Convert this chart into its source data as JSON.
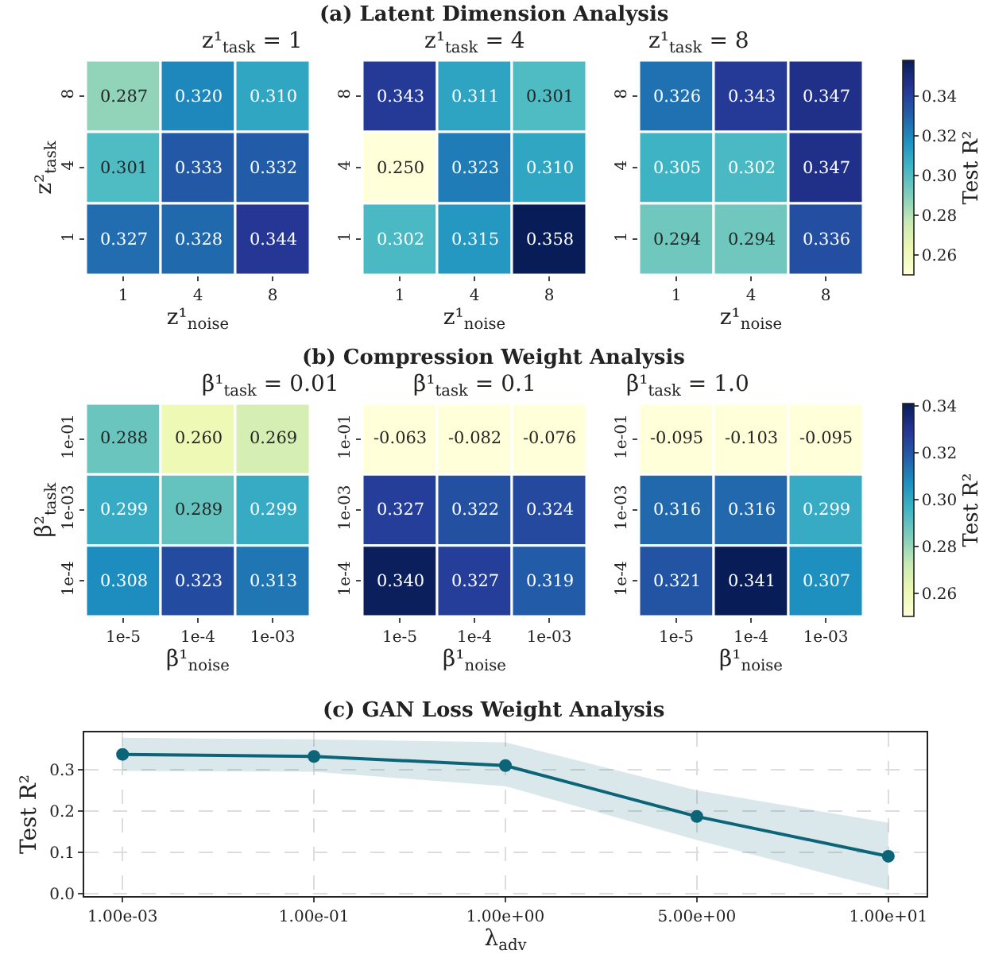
{
  "chart_data": [
    {
      "type": "heatmap",
      "annotations": [
        "(a) Latent Dimension Analysis"
      ],
      "title": "z¹$_{task}$ = 1",
      "xlabel": "z¹$_{noise}$",
      "ylabel": "z²$_{task}$",
      "categories": [
        "1",
        "4",
        "8"
      ],
      "y_categories": [
        "8",
        "4",
        "1"
      ],
      "cells": [
        [
          0.287,
          0.32,
          0.31
        ],
        [
          0.301,
          0.333,
          0.332
        ],
        [
          0.327,
          0.328,
          0.344
        ]
      ],
      "cell_labels": [
        [
          "0.287",
          "0.320",
          "0.310"
        ],
        [
          "0.301",
          "0.333",
          "0.332"
        ],
        [
          "0.327",
          "0.328",
          "0.344"
        ]
      ]
    },
    {
      "type": "heatmap",
      "title": "z¹$_{task}$ = 4",
      "xlabel": "z¹$_{noise}$",
      "categories": [
        "1",
        "4",
        "8"
      ],
      "y_categories": [
        "8",
        "4",
        "1"
      ],
      "cells": [
        [
          0.343,
          0.311,
          0.301
        ],
        [
          0.25,
          0.323,
          0.31
        ],
        [
          0.302,
          0.315,
          0.358
        ]
      ],
      "cell_labels": [
        [
          "0.343",
          "0.311",
          "0.301"
        ],
        [
          "0.250",
          "0.323",
          "0.310"
        ],
        [
          "0.302",
          "0.315",
          "0.358"
        ]
      ]
    },
    {
      "type": "heatmap",
      "title": "z¹$_{task}$ = 8",
      "xlabel": "z¹$_{noise}$",
      "categories": [
        "1",
        "4",
        "8"
      ],
      "y_categories": [
        "8",
        "4",
        "1"
      ],
      "cells": [
        [
          0.326,
          0.343,
          0.347
        ],
        [
          0.305,
          0.302,
          0.347
        ],
        [
          0.294,
          0.294,
          0.336
        ]
      ],
      "cell_labels": [
        [
          "0.326",
          "0.343",
          "0.347"
        ],
        [
          "0.305",
          "0.302",
          "0.347"
        ],
        [
          "0.294",
          "0.294",
          "0.336"
        ]
      ],
      "clim": [
        0.25,
        0.358
      ],
      "clabel": "Test R²",
      "cticks": [
        {
          "value": 0.26,
          "label": "0.26"
        },
        {
          "value": 0.28,
          "label": "0.28"
        },
        {
          "value": 0.3,
          "label": "0.30"
        },
        {
          "value": 0.32,
          "label": "0.32"
        },
        {
          "value": 0.34,
          "label": "0.34"
        }
      ]
    },
    {
      "type": "heatmap",
      "annotations": [
        "(b) Compression Weight Analysis"
      ],
      "title": "β¹$_{task}$ = 0.01",
      "xlabel": "β¹$_{noise}$",
      "ylabel": "β²$_{task}$",
      "categories": [
        "1e-5",
        "1e-4",
        "1e-03"
      ],
      "y_categories": [
        "1e-01",
        "1e-03",
        "1e-4"
      ],
      "cells": [
        [
          0.288,
          0.26,
          0.269
        ],
        [
          0.299,
          0.289,
          0.299
        ],
        [
          0.308,
          0.323,
          0.313
        ]
      ],
      "cell_labels": [
        [
          "0.288",
          "0.260",
          "0.269"
        ],
        [
          "0.299",
          "0.289",
          "0.299"
        ],
        [
          "0.308",
          "0.323",
          "0.313"
        ]
      ]
    },
    {
      "type": "heatmap",
      "title": "β¹$_{task}$ = 0.1",
      "xlabel": "β¹$_{noise}$",
      "categories": [
        "1e-5",
        "1e-4",
        "1e-03"
      ],
      "y_categories": [
        "1e-01",
        "1e-03",
        "1e-4"
      ],
      "cells": [
        [
          -0.063,
          -0.082,
          -0.076
        ],
        [
          0.327,
          0.322,
          0.324
        ],
        [
          0.34,
          0.327,
          0.319
        ]
      ],
      "cell_labels": [
        [
          "-0.063",
          "-0.082",
          "-0.076"
        ],
        [
          "0.327",
          "0.322",
          "0.324"
        ],
        [
          "0.340",
          "0.327",
          "0.319"
        ]
      ]
    },
    {
      "type": "heatmap",
      "title": "β¹$_{task}$ = 1.0",
      "xlabel": "β¹$_{noise}$",
      "categories": [
        "1e-5",
        "1e-4",
        "1e-03"
      ],
      "y_categories": [
        "1e-01",
        "1e-03",
        "1e-4"
      ],
      "cells": [
        [
          -0.095,
          -0.103,
          -0.095
        ],
        [
          0.316,
          0.316,
          0.299
        ],
        [
          0.321,
          0.341,
          0.307
        ]
      ],
      "cell_labels": [
        [
          "-0.095",
          "-0.103",
          "-0.095"
        ],
        [
          "0.316",
          "0.316",
          "0.299"
        ],
        [
          "0.321",
          "0.341",
          "0.307"
        ]
      ],
      "clim": [
        0.25,
        0.341
      ],
      "clabel": "Test R²",
      "cticks": [
        {
          "value": 0.26,
          "label": "0.26"
        },
        {
          "value": 0.28,
          "label": "0.28"
        },
        {
          "value": 0.3,
          "label": "0.30"
        },
        {
          "value": 0.32,
          "label": "0.32"
        },
        {
          "value": 0.34,
          "label": "0.34"
        }
      ]
    },
    {
      "type": "line",
      "title": "(c) GAN Loss Weight Analysis",
      "xlabel": "λ$_{adv}$",
      "ylabel": "Test R²",
      "categories": [
        "1.00e-03",
        "1.00e-01",
        "1.00e+00",
        "5.00e+00",
        "1.00e+01"
      ],
      "series": [
        {
          "color": "#0b6477",
          "values": [
            0.337,
            0.332,
            0.31,
            0.187,
            0.091
          ],
          "lower": [
            0.297,
            0.295,
            0.26,
            0.13,
            0.01
          ],
          "upper": [
            0.377,
            0.373,
            0.366,
            0.25,
            0.172
          ]
        }
      ],
      "ylim": [
        -0.005,
        0.39
      ],
      "yticks": [
        {
          "value": 0,
          "label": "0.0"
        },
        {
          "value": 0.1,
          "label": "0.1"
        },
        {
          "value": 0.2,
          "label": "0.2"
        },
        {
          "value": 0.3,
          "label": "0.3"
        }
      ],
      "grid": true,
      "marker": "circle",
      "line_style": "solid"
    }
  ]
}
